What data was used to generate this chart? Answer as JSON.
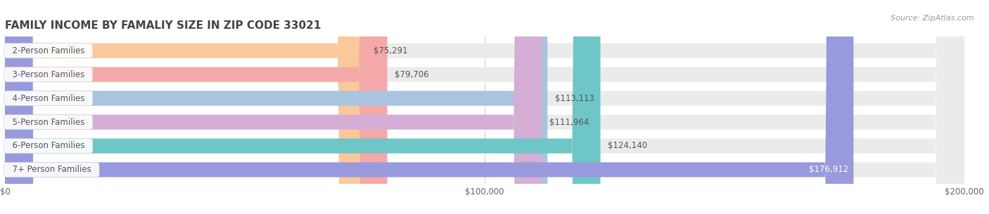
{
  "title": "FAMILY INCOME BY FAMALIY SIZE IN ZIP CODE 33021",
  "source": "Source: ZipAtlas.com",
  "categories": [
    "2-Person Families",
    "3-Person Families",
    "4-Person Families",
    "5-Person Families",
    "6-Person Families",
    "7+ Person Families"
  ],
  "values": [
    75291,
    79706,
    113113,
    111964,
    124140,
    176912
  ],
  "value_labels": [
    "$75,291",
    "$79,706",
    "$113,113",
    "$111,964",
    "$124,140",
    "$176,912"
  ],
  "bar_colors": [
    "#f9c89b",
    "#f4a9a8",
    "#a8c4e0",
    "#d4aed4",
    "#6ec6c6",
    "#9999dd"
  ],
  "row_bg_color": "#ebebeb",
  "xlim": [
    0,
    200000
  ],
  "xticks": [
    0,
    100000,
    200000
  ],
  "xtick_labels": [
    "$0",
    "$100,000",
    "$200,000"
  ],
  "title_fontsize": 11,
  "label_fontsize": 8.5,
  "value_fontsize": 8.5,
  "source_fontsize": 8,
  "background_color": "#ffffff",
  "bar_height": 0.62,
  "label_color": "#555555",
  "value_color_inside": "#ffffff",
  "value_color_outside": "#555555",
  "title_color": "#444444",
  "value_inside_threshold": 130000
}
